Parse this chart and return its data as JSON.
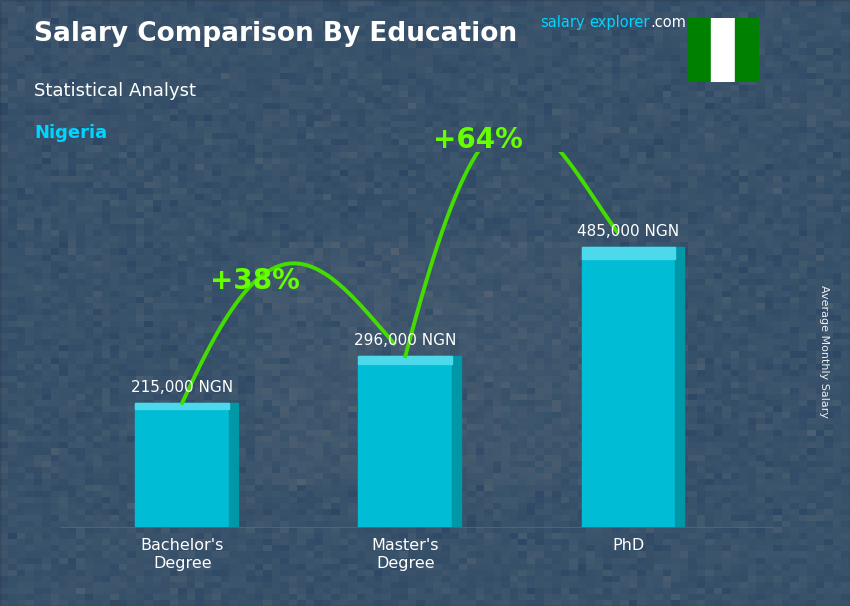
{
  "title": "Salary Comparison By Education",
  "subtitle": "Statistical Analyst",
  "country": "Nigeria",
  "ylabel": "Average Monthly Salary",
  "categories": [
    "Bachelor's\nDegree",
    "Master's\nDegree",
    "PhD"
  ],
  "values": [
    215000,
    296000,
    485000
  ],
  "value_labels": [
    "215,000 NGN",
    "296,000 NGN",
    "485,000 NGN"
  ],
  "pct_labels": [
    "+38%",
    "+64%"
  ],
  "bar_color": "#00bcd4",
  "bar_color_light": "#4dd9ec",
  "bar_color_side": "#0097a7",
  "background_color": "#5a6070",
  "overlay_color": "#3d4555",
  "title_color": "#ffffff",
  "subtitle_color": "#ffffff",
  "country_color": "#00d4ff",
  "pct_color": "#66ff00",
  "value_label_color": "#ffffff",
  "arrow_color": "#44dd00",
  "website_color": "#00d4ff",
  "com_color": "#ffffff",
  "flag_green": "#008000",
  "flag_white": "#ffffff",
  "ylim": [
    0,
    650000
  ],
  "bar_width": 0.42
}
